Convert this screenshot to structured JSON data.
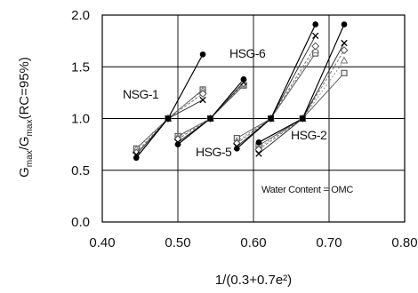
{
  "chart_data": {
    "type": "line",
    "xlabel": "1/(0.3+0.7e²)",
    "ylabel": {
      "G1": "G",
      "sub1": "max",
      "mid": "/G",
      "sub2": "max",
      "tail": "(RC=95%)"
    },
    "xlim": [
      0.4,
      0.8
    ],
    "ylim": [
      0.0,
      2.0
    ],
    "xticks": [
      "0.40",
      "0.50",
      "0.60",
      "0.70",
      "0.80"
    ],
    "yticks": [
      "0.0",
      "0.5",
      "1.0",
      "1.5",
      "2.0"
    ],
    "grid": true,
    "annotation": "Water Content = OMC",
    "group_labels": [
      "NSG-1",
      "HSG-6",
      "HSG-5",
      "HSG-2"
    ],
    "marker_series": [
      "circle",
      "x",
      "diamond-open",
      "triangle-open",
      "square-open"
    ],
    "groups": [
      {
        "label": "NSG-1",
        "lines": [
          {
            "marker": "circle",
            "x": [
              0.445,
              0.487,
              0.533
            ],
            "y": [
              0.62,
              1.0,
              1.62
            ]
          },
          {
            "marker": "x",
            "x": [
              0.445,
              0.487,
              0.533
            ],
            "y": [
              0.65,
              1.0,
              1.18
            ]
          },
          {
            "marker": "diamond-open",
            "x": [
              0.445,
              0.487,
              0.533
            ],
            "y": [
              0.67,
              1.0,
              1.24
            ]
          },
          {
            "marker": "triangle-open",
            "x": [
              0.445,
              0.487,
              0.533
            ],
            "y": [
              0.7,
              1.0,
              1.27
            ]
          },
          {
            "marker": "square-open",
            "x": [
              0.445,
              0.487,
              0.533
            ],
            "y": [
              0.71,
              1.0,
              1.28
            ]
          }
        ]
      },
      {
        "label": "HSG-6",
        "lines": [
          {
            "marker": "circle",
            "x": [
              0.5,
              0.543,
              0.587
            ],
            "y": [
              0.75,
              1.0,
              1.38
            ]
          },
          {
            "marker": "x",
            "x": [
              0.5,
              0.543,
              0.587
            ],
            "y": [
              0.77,
              1.0,
              1.35
            ]
          },
          {
            "marker": "diamond-open",
            "x": [
              0.5,
              0.543,
              0.587
            ],
            "y": [
              0.8,
              1.0,
              1.34
            ]
          },
          {
            "marker": "triangle-open",
            "x": [
              0.5,
              0.543,
              0.587
            ],
            "y": [
              0.82,
              1.0,
              1.33
            ]
          },
          {
            "marker": "square-open",
            "x": [
              0.5,
              0.543,
              0.587
            ],
            "y": [
              0.83,
              1.0,
              1.32
            ]
          }
        ]
      },
      {
        "label": "HSG-5",
        "lines": [
          {
            "marker": "circle",
            "x": [
              0.578,
              0.623,
              0.682
            ],
            "y": [
              0.71,
              1.0,
              1.91
            ]
          },
          {
            "marker": "x",
            "x": [
              0.578,
              0.623,
              0.682
            ],
            "y": [
              0.73,
              1.0,
              1.8
            ]
          },
          {
            "marker": "diamond-open",
            "x": [
              0.578,
              0.623,
              0.682
            ],
            "y": [
              0.76,
              1.0,
              1.7
            ]
          },
          {
            "marker": "triangle-open",
            "x": [
              0.578,
              0.623,
              0.682
            ],
            "y": [
              0.78,
              1.0,
              1.66
            ]
          },
          {
            "marker": "square-open",
            "x": [
              0.578,
              0.623,
              0.682
            ],
            "y": [
              0.81,
              1.0,
              1.63
            ]
          }
        ]
      },
      {
        "label": "HSG-2",
        "lines": [
          {
            "marker": "circle",
            "x": [
              0.607,
              0.665,
              0.72
            ],
            "y": [
              0.77,
              1.0,
              1.91
            ]
          },
          {
            "marker": "x",
            "x": [
              0.607,
              0.665,
              0.72
            ],
            "y": [
              0.66,
              1.0,
              1.73
            ]
          },
          {
            "marker": "diamond-open",
            "x": [
              0.607,
              0.665,
              0.72
            ],
            "y": [
              0.7,
              1.0,
              1.66
            ]
          },
          {
            "marker": "triangle-open",
            "x": [
              0.607,
              0.665,
              0.72
            ],
            "y": [
              0.72,
              1.0,
              1.56
            ]
          },
          {
            "marker": "square-open",
            "x": [
              0.607,
              0.665,
              0.72
            ],
            "y": [
              0.74,
              1.0,
              1.44
            ]
          }
        ]
      }
    ]
  }
}
